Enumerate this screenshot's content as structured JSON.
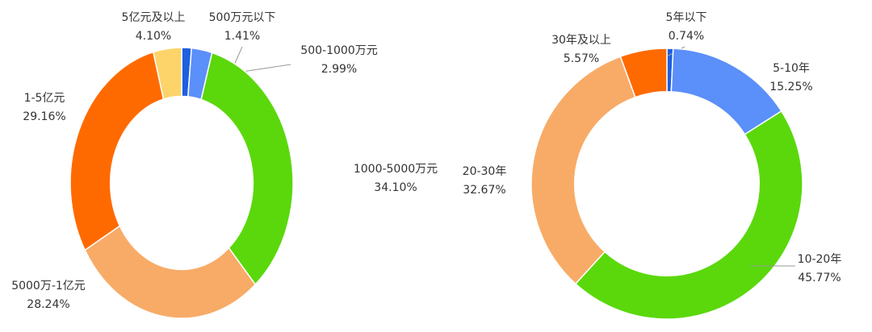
{
  "chart_data": [
    {
      "type": "donut",
      "categories": [
        "500万元以下",
        "500-1000万元",
        "1000-5000万元",
        "5000万-1亿元",
        "1-5亿元",
        "5亿元及以上"
      ],
      "values": [
        1.41,
        2.99,
        34.1,
        28.24,
        29.16,
        4.1
      ],
      "value_labels": [
        "1.41%",
        "2.99%",
        "34.10%",
        "28.24%",
        "29.16%",
        "4.10%"
      ],
      "colors": [
        "#1f5fe0",
        "#5b8ff9",
        "#5ad80c",
        "#f8ab67",
        "#ff6a00",
        "#fcd46a"
      ]
    },
    {
      "type": "donut",
      "categories": [
        "5年以下",
        "5-10年",
        "10-20年",
        "20-30年",
        "30年及以上"
      ],
      "values": [
        0.74,
        15.25,
        45.77,
        32.67,
        5.57
      ],
      "value_labels": [
        "0.74%",
        "15.25%",
        "45.77%",
        "32.67%",
        "5.57%"
      ],
      "colors": [
        "#1f5fe0",
        "#5b8ff9",
        "#5ad80c",
        "#f8ab67",
        "#ff6a00"
      ]
    }
  ]
}
